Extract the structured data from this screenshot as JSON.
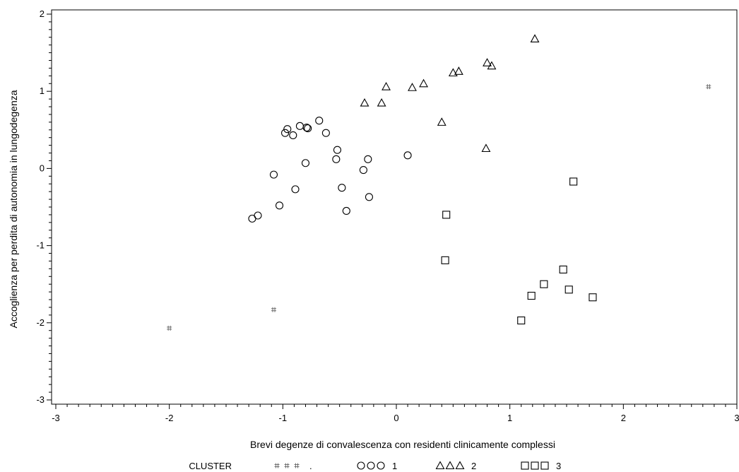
{
  "chart_data": {
    "type": "scatter",
    "xlabel": "Brevi degenze di convalescenza con residenti clinicamente complessi",
    "ylabel": "Accoglienza per perdita di autonomia in lungodegenza",
    "xlim": [
      -3,
      3
    ],
    "ylim": [
      -3,
      2
    ],
    "x_ticks": [
      -3,
      -2,
      -1,
      0,
      1,
      2,
      3
    ],
    "y_ticks": [
      -3,
      -2,
      -1,
      0,
      1,
      2
    ],
    "x_tick_labels": [
      "-3",
      "-2",
      "-1",
      "0",
      "1",
      "2",
      "3"
    ],
    "y_tick_labels": [
      "-3",
      "-2",
      "-1",
      "0",
      "1",
      "2"
    ],
    "grid": false,
    "legend": {
      "title": "CLUSTER",
      "placement": "bottom",
      "entries": [
        {
          "symbol": "hash",
          "glyphs": "# # #",
          "label": "."
        },
        {
          "symbol": "circle",
          "label": "1"
        },
        {
          "symbol": "triangle",
          "label": "2"
        },
        {
          "symbol": "square",
          "label": "3"
        }
      ]
    },
    "series": [
      {
        "symbol": "hash",
        "color": "#666666",
        "x": [
          -2.0,
          -1.08,
          2.75
        ],
        "y": [
          -2.07,
          -1.83,
          1.06
        ]
      },
      {
        "symbol": "circle",
        "color": "#000000",
        "x": [
          -1.27,
          -1.22,
          -1.08,
          -1.03,
          -0.98,
          -0.96,
          -0.91,
          -0.89,
          -0.85,
          -0.8,
          -0.79,
          -0.78,
          -0.68,
          -0.62,
          -0.53,
          -0.52,
          -0.48,
          -0.44,
          -0.29,
          -0.25,
          -0.24,
          0.1
        ],
        "y": [
          -0.65,
          -0.61,
          -0.08,
          -0.48,
          0.46,
          0.51,
          0.43,
          -0.27,
          0.55,
          0.07,
          0.53,
          0.52,
          0.62,
          0.46,
          0.12,
          0.24,
          -0.25,
          -0.55,
          -0.02,
          0.12,
          -0.37,
          0.17
        ]
      },
      {
        "symbol": "triangle",
        "color": "#000000",
        "x": [
          -0.28,
          -0.13,
          -0.09,
          0.14,
          0.24,
          0.4,
          0.5,
          0.55,
          0.79,
          0.8,
          0.84,
          1.22
        ],
        "y": [
          0.85,
          0.85,
          1.06,
          1.05,
          1.1,
          0.6,
          1.24,
          1.26,
          0.26,
          1.37,
          1.33,
          1.68
        ]
      },
      {
        "symbol": "square",
        "color": "#000000",
        "x": [
          0.43,
          0.44,
          1.1,
          1.19,
          1.3,
          1.47,
          1.52,
          1.56,
          1.73
        ],
        "y": [
          -1.19,
          -0.6,
          -1.97,
          -1.65,
          -1.5,
          -1.31,
          -1.57,
          -0.17,
          -1.67
        ]
      }
    ]
  }
}
